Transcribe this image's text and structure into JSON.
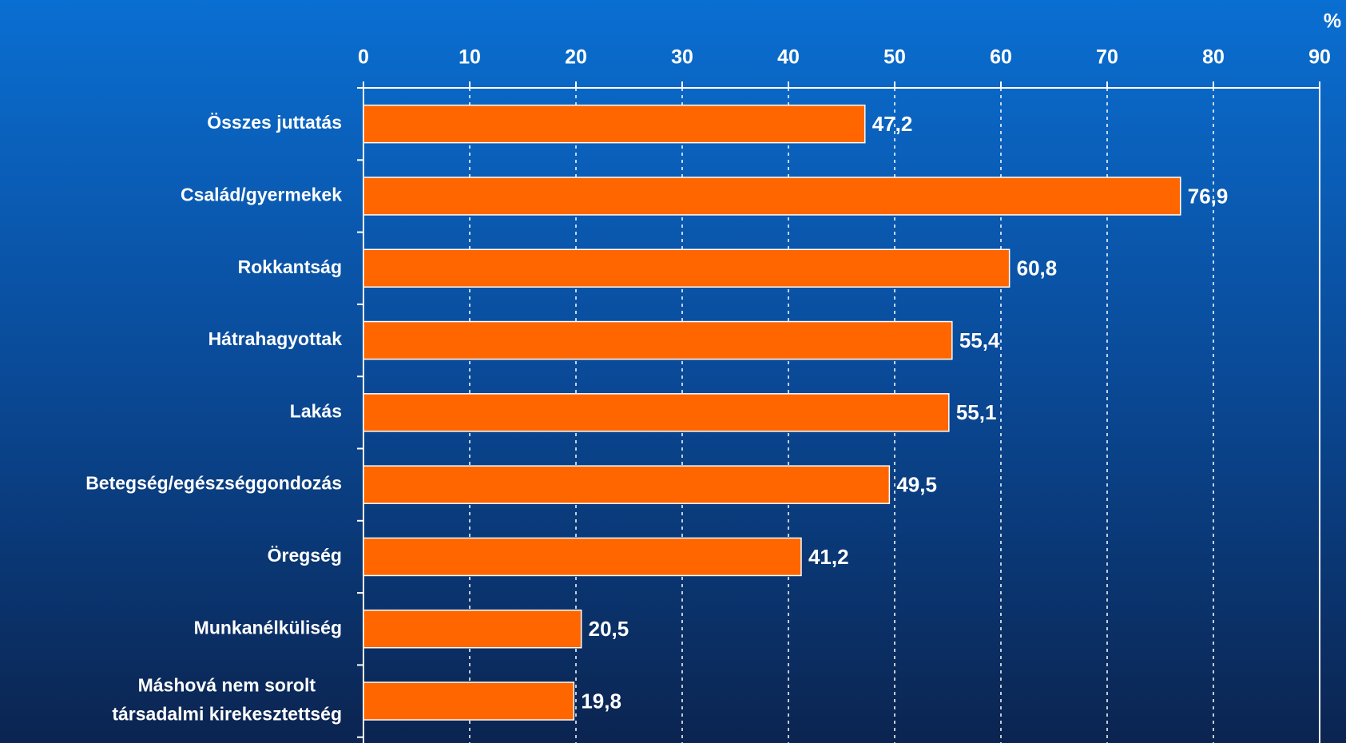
{
  "chart_data": {
    "type": "bar",
    "orientation": "horizontal",
    "categories": [
      "Összes juttatás",
      "Család/gyermekek",
      "Rokkantság",
      "Hátrahagyottak",
      "Lakás",
      "Betegség/egészséggondozás",
      "Öregség",
      "Munkanélküliség",
      "Máshová nem sorolt\ntársadalmi kirekesztettség"
    ],
    "values": [
      47.2,
      76.9,
      60.8,
      55.4,
      55.1,
      49.5,
      41.2,
      20.5,
      19.8
    ],
    "value_labels": [
      "47,2",
      "76,9",
      "60,8",
      "55,4",
      "55,1",
      "49,5",
      "41,2",
      "20,5",
      "19,8"
    ],
    "color": "#ff6600",
    "xlabel": "%",
    "xlim": [
      0,
      90
    ],
    "xticks": [
      0,
      10,
      20,
      30,
      40,
      50,
      60,
      70,
      80,
      90
    ],
    "grid": true
  }
}
